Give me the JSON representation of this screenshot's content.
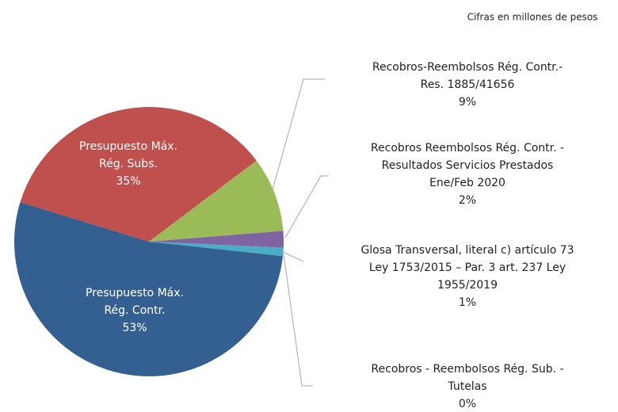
{
  "chart_data": {
    "type": "pie",
    "subtitle": "Cifras en millones de pesos",
    "categories": [
      "Presupuesto Máx.\nRég. Subs.",
      "Recobros-Reembolsos Rég. Contr.-\nRes. 1885/41656",
      "Recobros Reembolsos Rég. Contr. -\nResultados Servicios  Prestados\nEne/Feb 2020",
      "Glosa Transversal, literal c) artículo 73\nLey 1753/2015 – Par. 3 art. 237 Ley\n1955/2019",
      "Recobros - Reembolsos Rég. Sub. -\nTutelas",
      "Presupuesto Máx.\nRég. Contr."
    ],
    "values": [
      35,
      9,
      2,
      1,
      0,
      53
    ],
    "value_labels": [
      "35%",
      "9%",
      "2%",
      "1%",
      "0%",
      "53%"
    ],
    "colors": [
      "#c0504d",
      "#9bbb59",
      "#8064a2",
      "#4bacc6",
      "#f79646",
      "#345f91"
    ]
  }
}
